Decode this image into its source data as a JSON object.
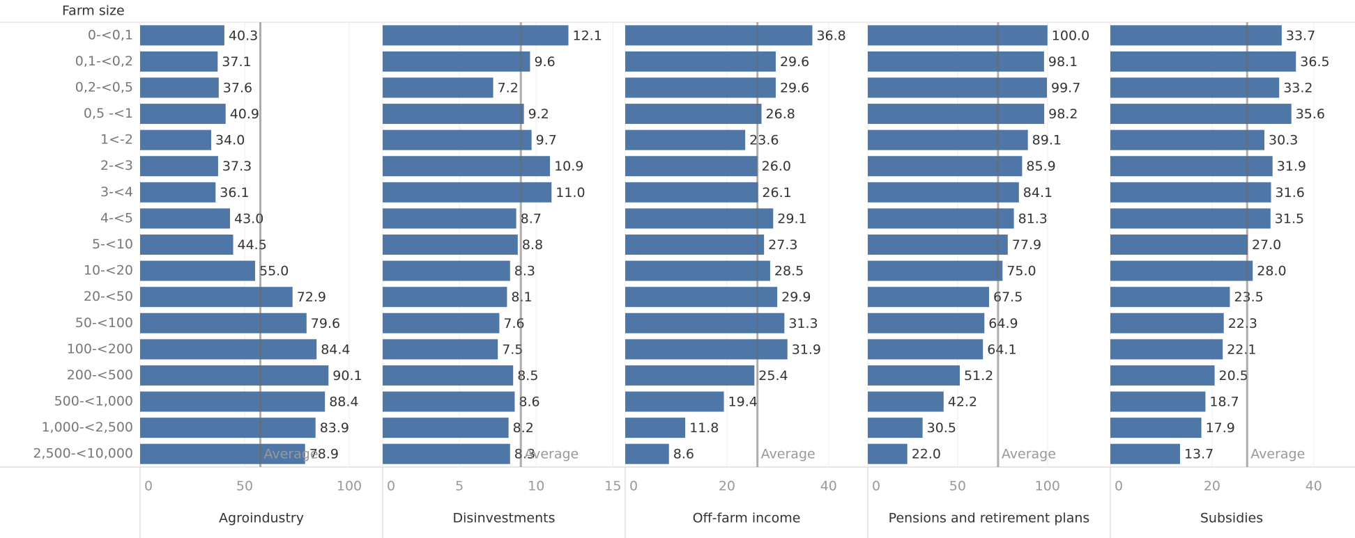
{
  "chart_data": {
    "type": "bar",
    "y_label": "Farm size",
    "color": "#4e77a8",
    "grid": true,
    "average_label": "Average",
    "categories": [
      "0-<0,1",
      "0,1-<0,2",
      "0,2-<0,5",
      "0,5 -<1",
      "1<-2",
      "2-<3",
      "3-<4",
      "4-<5",
      "5-<10",
      "10-<20",
      "20-<50",
      "50-<100",
      "100-<200",
      "200-<500",
      "500-<1,000",
      "1,000-<2,500",
      "2,500-<10,000"
    ],
    "panels": [
      {
        "name": "Agroindustry",
        "xlim": [
          0,
          116
        ],
        "xticks": [
          0,
          50,
          100
        ],
        "average": 57.5,
        "values": [
          40.3,
          37.1,
          37.6,
          40.9,
          34,
          37.3,
          36.1,
          43,
          44.5,
          55,
          72.9,
          79.6,
          84.4,
          90.1,
          88.4,
          83.9,
          78.9
        ],
        "value_labels": [
          "40.3",
          "37.1",
          "37.6",
          "40.9",
          "34.0",
          "37.3",
          "36.1",
          "43.0",
          "44.5",
          "55.0",
          "72.9",
          "79.6",
          "84.4",
          "90.1",
          "88.4",
          "83.9",
          "78.9"
        ]
      },
      {
        "name": "Disinvestments",
        "xlim": [
          0,
          15.8
        ],
        "xticks": [
          0,
          5,
          10,
          15
        ],
        "average": 9.0,
        "values": [
          12.1,
          9.6,
          7.2,
          9.2,
          9.7,
          10.9,
          11,
          8.7,
          8.8,
          8.3,
          8.1,
          7.6,
          7.5,
          8.5,
          8.6,
          8.2,
          8.3
        ],
        "value_labels": [
          "12.1",
          "9.6",
          "7.2",
          "9.2",
          "9.7",
          "10.9",
          "11.0",
          "8.7",
          "8.8",
          "8.3",
          "8.1",
          "7.6",
          "7.5",
          "8.5",
          "8.6",
          "8.2",
          "8.3"
        ]
      },
      {
        "name": "Off-farm income",
        "xlim": [
          0,
          47.7
        ],
        "xticks": [
          0,
          20,
          40
        ],
        "average": 26.0,
        "values": [
          36.8,
          29.6,
          29.6,
          26.8,
          23.6,
          26,
          26.1,
          29.1,
          27.3,
          28.5,
          29.9,
          31.3,
          31.9,
          25.4,
          19.4,
          11.8,
          8.6
        ],
        "value_labels": [
          "36.8",
          "29.6",
          "29.6",
          "26.8",
          "23.6",
          "26.0",
          "26.1",
          "29.1",
          "27.3",
          "28.5",
          "29.9",
          "31.3",
          "31.9",
          "25.4",
          "19.4",
          "11.8",
          "8.6"
        ]
      },
      {
        "name": "Pensions and retirement plans",
        "xlim": [
          0,
          135
        ],
        "xticks": [
          0,
          50,
          100
        ],
        "average": 72.5,
        "values": [
          100,
          98.1,
          99.7,
          98.2,
          89.1,
          85.9,
          84.1,
          81.3,
          77.9,
          75,
          67.5,
          64.9,
          64.1,
          51.2,
          42.2,
          30.5,
          22
        ],
        "value_labels": [
          "100.0",
          "98.1",
          "99.7",
          "98.2",
          "89.1",
          "85.9",
          "84.1",
          "81.3",
          "77.9",
          "75.0",
          "67.5",
          "64.9",
          "64.1",
          "51.2",
          "42.2",
          "30.5",
          "22.0"
        ]
      },
      {
        "name": "Subsidies",
        "xlim": [
          0,
          47.7
        ],
        "xticks": [
          0,
          20,
          40
        ],
        "average": 26.9,
        "values": [
          33.7,
          36.5,
          33.2,
          35.6,
          30.3,
          31.9,
          31.6,
          31.5,
          27,
          28,
          23.5,
          22.3,
          22.1,
          20.5,
          18.7,
          17.9,
          13.7
        ],
        "value_labels": [
          "33.7",
          "36.5",
          "33.2",
          "35.6",
          "30.3",
          "31.9",
          "31.6",
          "31.5",
          "27.0",
          "28.0",
          "23.5",
          "22.3",
          "22.1",
          "20.5",
          "18.7",
          "17.9",
          "13.7"
        ]
      }
    ]
  }
}
